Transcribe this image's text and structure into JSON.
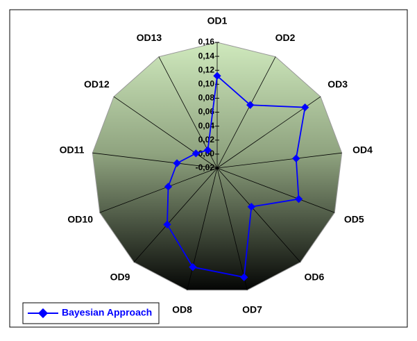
{
  "chart_data": {
    "type": "radar",
    "categories": [
      "OD1",
      "OD2",
      "OD3",
      "OD4",
      "OD5",
      "OD6",
      "OD7",
      "OD8",
      "OD9",
      "OD10",
      "OD11",
      "OD12",
      "OD13"
    ],
    "series": [
      {
        "name": "Bayesian Approach",
        "color": "#0000ff",
        "values": [
          0.112,
          0.082,
          0.133,
          0.094,
          0.105,
          0.054,
          0.141,
          0.126,
          0.088,
          0.055,
          0.038,
          0.017,
          0.009
        ]
      }
    ],
    "ylim": [
      -0.02,
      0.16
    ],
    "yticks": [
      {
        "value": -0.02,
        "label": "-0,02"
      },
      {
        "value": 0,
        "label": "0,00"
      },
      {
        "value": 0.02,
        "label": "0,02"
      },
      {
        "value": 0.04,
        "label": "0,04"
      },
      {
        "value": 0.06,
        "label": "0,06"
      },
      {
        "value": 0.08,
        "label": "0,08"
      },
      {
        "value": 0.1,
        "label": "0,10"
      },
      {
        "value": 0.12,
        "label": "0,12"
      },
      {
        "value": 0.14,
        "label": "0,14"
      },
      {
        "value": 0.16,
        "label": "0,16"
      }
    ],
    "legend": "bottom-left"
  }
}
